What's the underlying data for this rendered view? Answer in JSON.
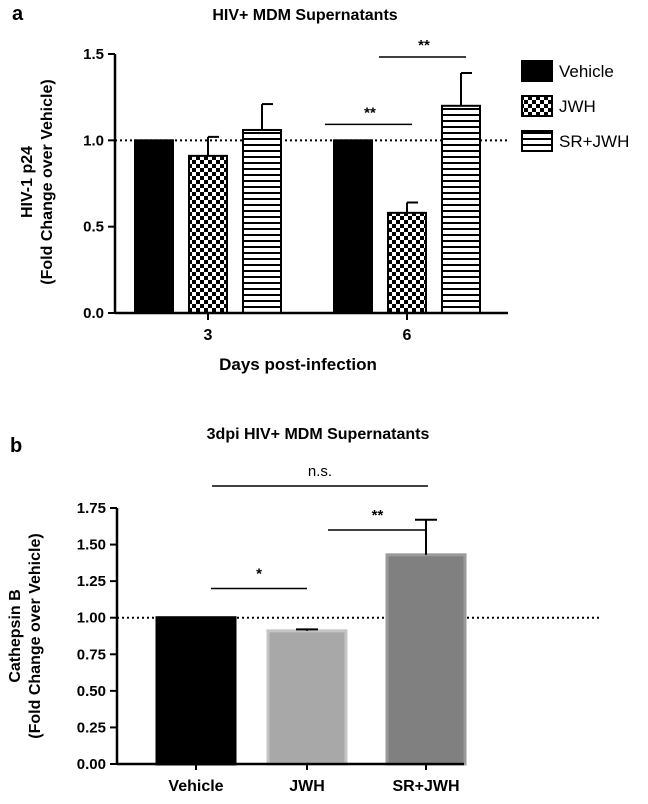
{
  "chart_data": [
    {
      "panel_label": "a",
      "type": "bar",
      "title": "HIV+ MDM Supernatants",
      "xlabel": "Days post-infection",
      "ylabel_lines": [
        "HIV-1 p24",
        "(Fold Change over Vehicle)"
      ],
      "categories": [
        "3",
        "6"
      ],
      "ylim": [
        0,
        1.5
      ],
      "yticks": [
        "0.0",
        "0.5",
        "1.0",
        "1.5"
      ],
      "reference_line": 1.0,
      "legend_position": "right",
      "series": [
        {
          "name": "Vehicle",
          "values": [
            1.0,
            1.0
          ],
          "errors": [
            0,
            0
          ],
          "fill": "solid",
          "color": "#000000"
        },
        {
          "name": "JWH",
          "values": [
            0.91,
            0.58
          ],
          "errors": [
            0.11,
            0.06
          ],
          "fill": "checker",
          "color": "#000000"
        },
        {
          "name": "SR+JWH",
          "values": [
            1.06,
            1.2
          ],
          "errors": [
            0.15,
            0.19
          ],
          "fill": "hstripes",
          "color": "#000000"
        }
      ],
      "significance": [
        {
          "category": "6",
          "from": "Vehicle",
          "to": "JWH",
          "label": "**"
        },
        {
          "category": "6",
          "from": "JWH",
          "to": "SR+JWH",
          "label": "**"
        }
      ]
    },
    {
      "panel_label": "b",
      "type": "bar",
      "title": "3dpi HIV+ MDM Supernatants",
      "xlabel": "",
      "ylabel_lines": [
        "Cathepsin B",
        "(Fold Change over Vehicle)"
      ],
      "categories": [
        "Vehicle",
        "JWH",
        "SR+JWH"
      ],
      "values": [
        1.0,
        0.91,
        1.43
      ],
      "errors": [
        0,
        0.01,
        0.24
      ],
      "colors": [
        "#000000",
        "#a8a8a8",
        "#808080"
      ],
      "ylim": [
        0,
        1.75
      ],
      "yticks": [
        "0.00",
        "0.25",
        "0.50",
        "0.75",
        "1.00",
        "1.25",
        "1.50",
        "1.75"
      ],
      "reference_line": 1.0,
      "significance": [
        {
          "from": "Vehicle",
          "to": "JWH",
          "label": "*"
        },
        {
          "from": "JWH",
          "to": "SR+JWH",
          "label": "**"
        },
        {
          "from": "Vehicle",
          "to": "SR+JWH",
          "label": "n.s."
        }
      ]
    }
  ]
}
